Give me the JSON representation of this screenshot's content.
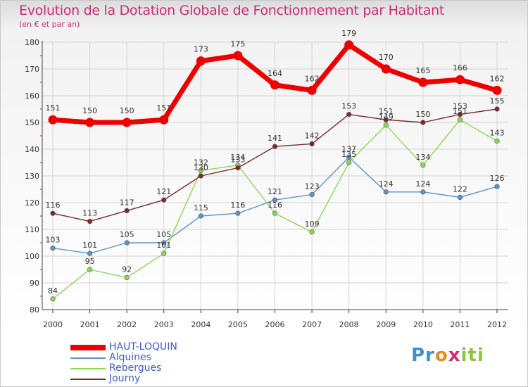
{
  "header": {
    "title": "Evolution de la Dotation Globale de Fonctionnement par Habitant",
    "subtitle": "(en € et par an)"
  },
  "logo": {
    "text": "Proxiti",
    "colors": [
      "#3c8fd0",
      "#e98a1f",
      "#8cc63f",
      "#d82c6c"
    ]
  },
  "chart_data": {
    "type": "line",
    "title": "Evolution de la Dotation Globale de Fonctionnement par Habitant",
    "subtitle": "(en € et par an)",
    "x": [
      "2000",
      "2001",
      "2002",
      "2003",
      "2004",
      "2005",
      "2006",
      "2007",
      "2008",
      "2009",
      "2010",
      "2011",
      "2012"
    ],
    "ylim": [
      80,
      180
    ],
    "yticks": [
      80,
      90,
      100,
      110,
      120,
      130,
      140,
      150,
      160,
      170,
      180
    ],
    "grid": true,
    "legend_position": "bottom-left",
    "series": [
      {
        "name": "HAUT-LOQUIN",
        "color": "#ee0000",
        "highlight": true,
        "values": [
          151,
          150,
          150,
          151,
          173,
          175,
          164,
          162,
          179,
          170,
          165,
          166,
          162
        ]
      },
      {
        "name": "Alquines",
        "color": "#5b95c8",
        "highlight": false,
        "values": [
          103,
          101,
          105,
          105,
          115,
          116,
          121,
          123,
          137,
          124,
          124,
          122,
          126
        ]
      },
      {
        "name": "Rebergues",
        "color": "#8dd65a",
        "highlight": false,
        "values": [
          84,
          95,
          92,
          101,
          132,
          134,
          116,
          109,
          135,
          149,
          134,
          151,
          143
        ]
      },
      {
        "name": "Journy",
        "color": "#7a2b2b",
        "highlight": false,
        "values": [
          116,
          113,
          117,
          121,
          130,
          133,
          141,
          142,
          153,
          151,
          150,
          153,
          155
        ]
      }
    ]
  }
}
